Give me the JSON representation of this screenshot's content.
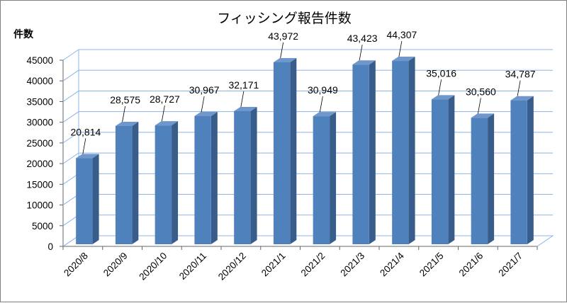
{
  "chart_data": {
    "type": "bar",
    "title": "フィッシング報告件数",
    "ylabel": "件数",
    "xlabel": "",
    "categories": [
      "2020/8",
      "2020/9",
      "2020/10",
      "2020/11",
      "2020/12",
      "2021/1",
      "2021/2",
      "2021/3",
      "2021/4",
      "2021/5",
      "2021/6",
      "2021/7"
    ],
    "values": [
      20814,
      28575,
      28727,
      30967,
      32171,
      43972,
      30949,
      43423,
      44307,
      35016,
      30560,
      34787
    ],
    "data_labels": [
      "20,814",
      "28,575",
      "28,727",
      "30,967",
      "32,171",
      "43,972",
      "30,949",
      "43,423",
      "44,307",
      "35,016",
      "30,560",
      "34,787"
    ],
    "yticks": [
      0,
      5000,
      10000,
      15000,
      20000,
      25000,
      30000,
      35000,
      40000,
      45000
    ],
    "ylim": [
      0,
      45000
    ],
    "grid": true,
    "legend": "none",
    "style": "3d-column",
    "colors": {
      "bar_front": "#4f81bd",
      "bar_side": "#385d8a",
      "bar_top": "#6f97cc",
      "grid": "#8eb4e3",
      "wall": "#ffffff"
    }
  }
}
